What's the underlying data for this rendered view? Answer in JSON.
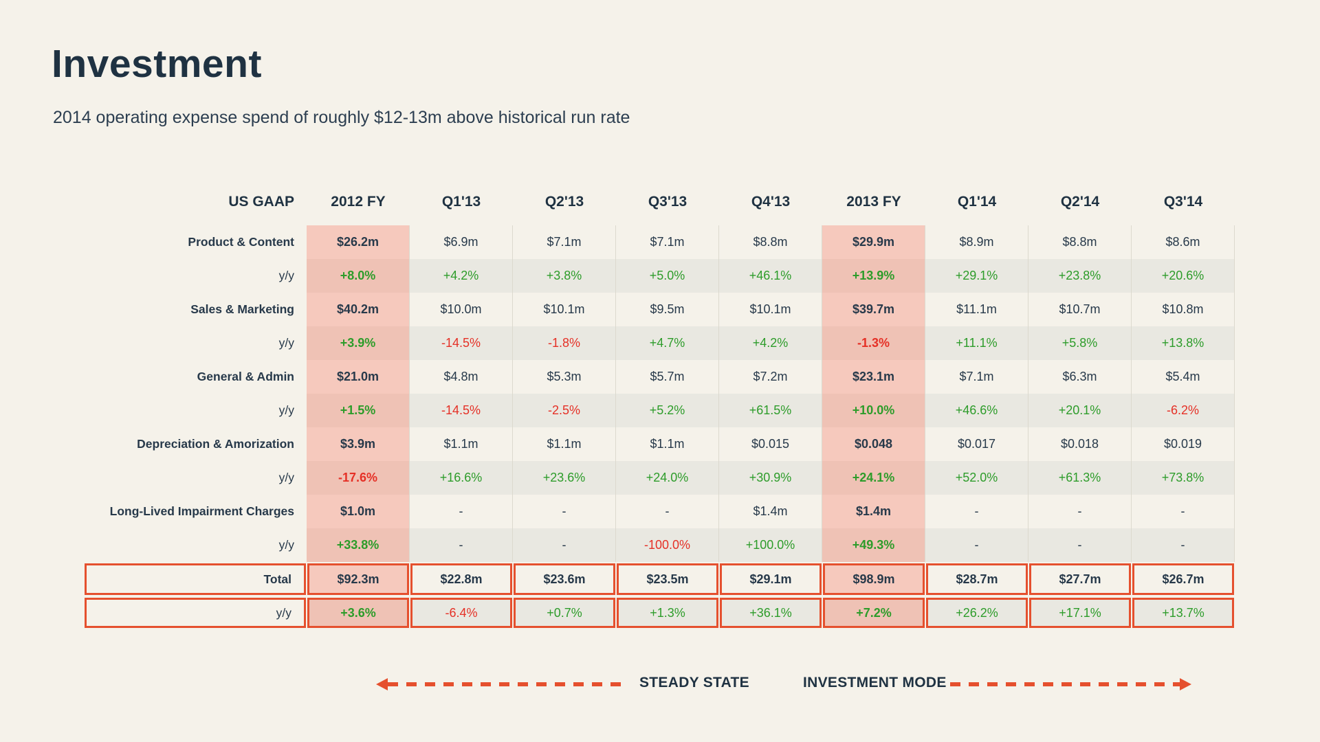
{
  "page": {
    "title": "Investment",
    "subtitle": "2014 operating expense spend of roughly $12-13m above historical run rate"
  },
  "colors": {
    "background": "#F5F2EA",
    "text_navy": "#1F3242",
    "positive_green": "#2D9C2A",
    "negative_red": "#E53026",
    "highlight_pink": "#F6C9BD",
    "highlight_pink_dark": "#EFC2B5",
    "stripe_gray": "#E9E8E1",
    "accent_orange": "#E5502E"
  },
  "table": {
    "columns": [
      "US GAAP",
      "2012 FY",
      "Q1'13",
      "Q2'13",
      "Q3'13",
      "Q4'13",
      "2013 FY",
      "Q1'14",
      "Q2'14",
      "Q3'14"
    ],
    "highlight_value_indices": [
      0,
      5
    ],
    "rows": [
      {
        "label": "Product & Content",
        "type": "value",
        "values": [
          "$26.2m",
          "$6.9m",
          "$7.1m",
          "$7.1m",
          "$8.8m",
          "$29.9m",
          "$8.9m",
          "$8.8m",
          "$8.6m"
        ]
      },
      {
        "label": "y/y",
        "type": "yoy",
        "values": [
          "+8.0%",
          "+4.2%",
          "+3.8%",
          "+5.0%",
          "+46.1%",
          "+13.9%",
          "+29.1%",
          "+23.8%",
          "+20.6%"
        ]
      },
      {
        "label": "Sales & Marketing",
        "type": "value",
        "values": [
          "$40.2m",
          "$10.0m",
          "$10.1m",
          "$9.5m",
          "$10.1m",
          "$39.7m",
          "$11.1m",
          "$10.7m",
          "$10.8m"
        ]
      },
      {
        "label": "y/y",
        "type": "yoy",
        "values": [
          "+3.9%",
          "-14.5%",
          "-1.8%",
          "+4.7%",
          "+4.2%",
          "-1.3%",
          "+11.1%",
          "+5.8%",
          "+13.8%"
        ]
      },
      {
        "label": "General & Admin",
        "type": "value",
        "values": [
          "$21.0m",
          "$4.8m",
          "$5.3m",
          "$5.7m",
          "$7.2m",
          "$23.1m",
          "$7.1m",
          "$6.3m",
          "$5.4m"
        ]
      },
      {
        "label": "y/y",
        "type": "yoy",
        "values": [
          "+1.5%",
          "-14.5%",
          "-2.5%",
          "+5.2%",
          "+61.5%",
          "+10.0%",
          "+46.6%",
          "+20.1%",
          "-6.2%"
        ]
      },
      {
        "label": "Depreciation & Amorization",
        "type": "value",
        "values": [
          "$3.9m",
          "$1.1m",
          "$1.1m",
          "$1.1m",
          "$0.015",
          "$0.048",
          "$0.017",
          "$0.018",
          "$0.019"
        ]
      },
      {
        "label": "y/y",
        "type": "yoy",
        "values": [
          "-17.6%",
          "+16.6%",
          "+23.6%",
          "+24.0%",
          "+30.9%",
          "+24.1%",
          "+52.0%",
          "+61.3%",
          "+73.8%"
        ]
      },
      {
        "label": "Long-Lived Impairment Charges",
        "type": "value",
        "values": [
          "$1.0m",
          "-",
          "-",
          "-",
          "$1.4m",
          "$1.4m",
          "-",
          "-",
          "-"
        ]
      },
      {
        "label": "y/y",
        "type": "yoy",
        "values": [
          "+33.8%",
          "-",
          "-",
          "-100.0%",
          "+100.0%",
          "+49.3%",
          "-",
          "-",
          "-"
        ]
      },
      {
        "label": "Total",
        "type": "total",
        "values": [
          "$92.3m",
          "$22.8m",
          "$23.6m",
          "$23.5m",
          "$29.1m",
          "$98.9m",
          "$28.7m",
          "$27.7m",
          "$26.7m"
        ]
      },
      {
        "label": "y/y",
        "type": "total_yoy",
        "values": [
          "+3.6%",
          "-6.4%",
          "+0.7%",
          "+1.3%",
          "+36.1%",
          "+7.2%",
          "+26.2%",
          "+17.1%",
          "+13.7%"
        ]
      }
    ]
  },
  "footer": {
    "steady_state_label": "STEADY STATE",
    "investment_mode_label": "INVESTMENT MODE"
  }
}
